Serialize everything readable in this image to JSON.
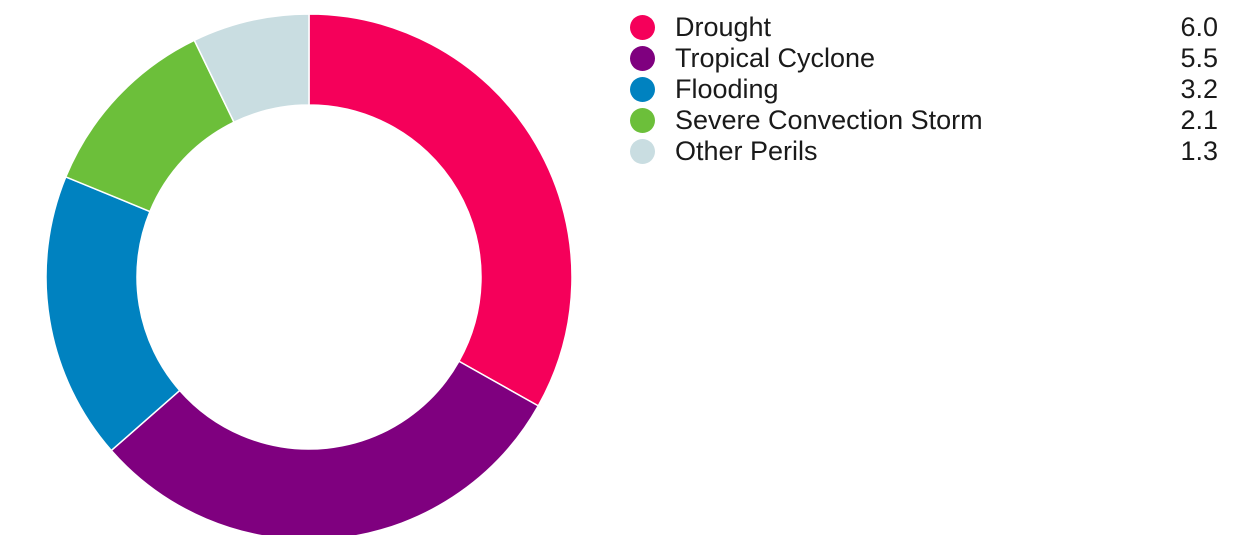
{
  "chart_data": {
    "type": "pie",
    "title": "",
    "categories": [
      "Drought",
      "Tropical Cyclone",
      "Flooding",
      "Severe Convection Storm",
      "Other Perils"
    ],
    "values": [
      6.0,
      5.5,
      3.2,
      2.1,
      1.3
    ],
    "value_labels": [
      "6.0",
      "5.5",
      "3.2",
      "2.1",
      "1.3"
    ],
    "colors": [
      "#f5005a",
      "#7f007f",
      "#0082c0",
      "#6cbf3a",
      "#c9dde1"
    ],
    "donut": true,
    "legend_position": "right"
  }
}
